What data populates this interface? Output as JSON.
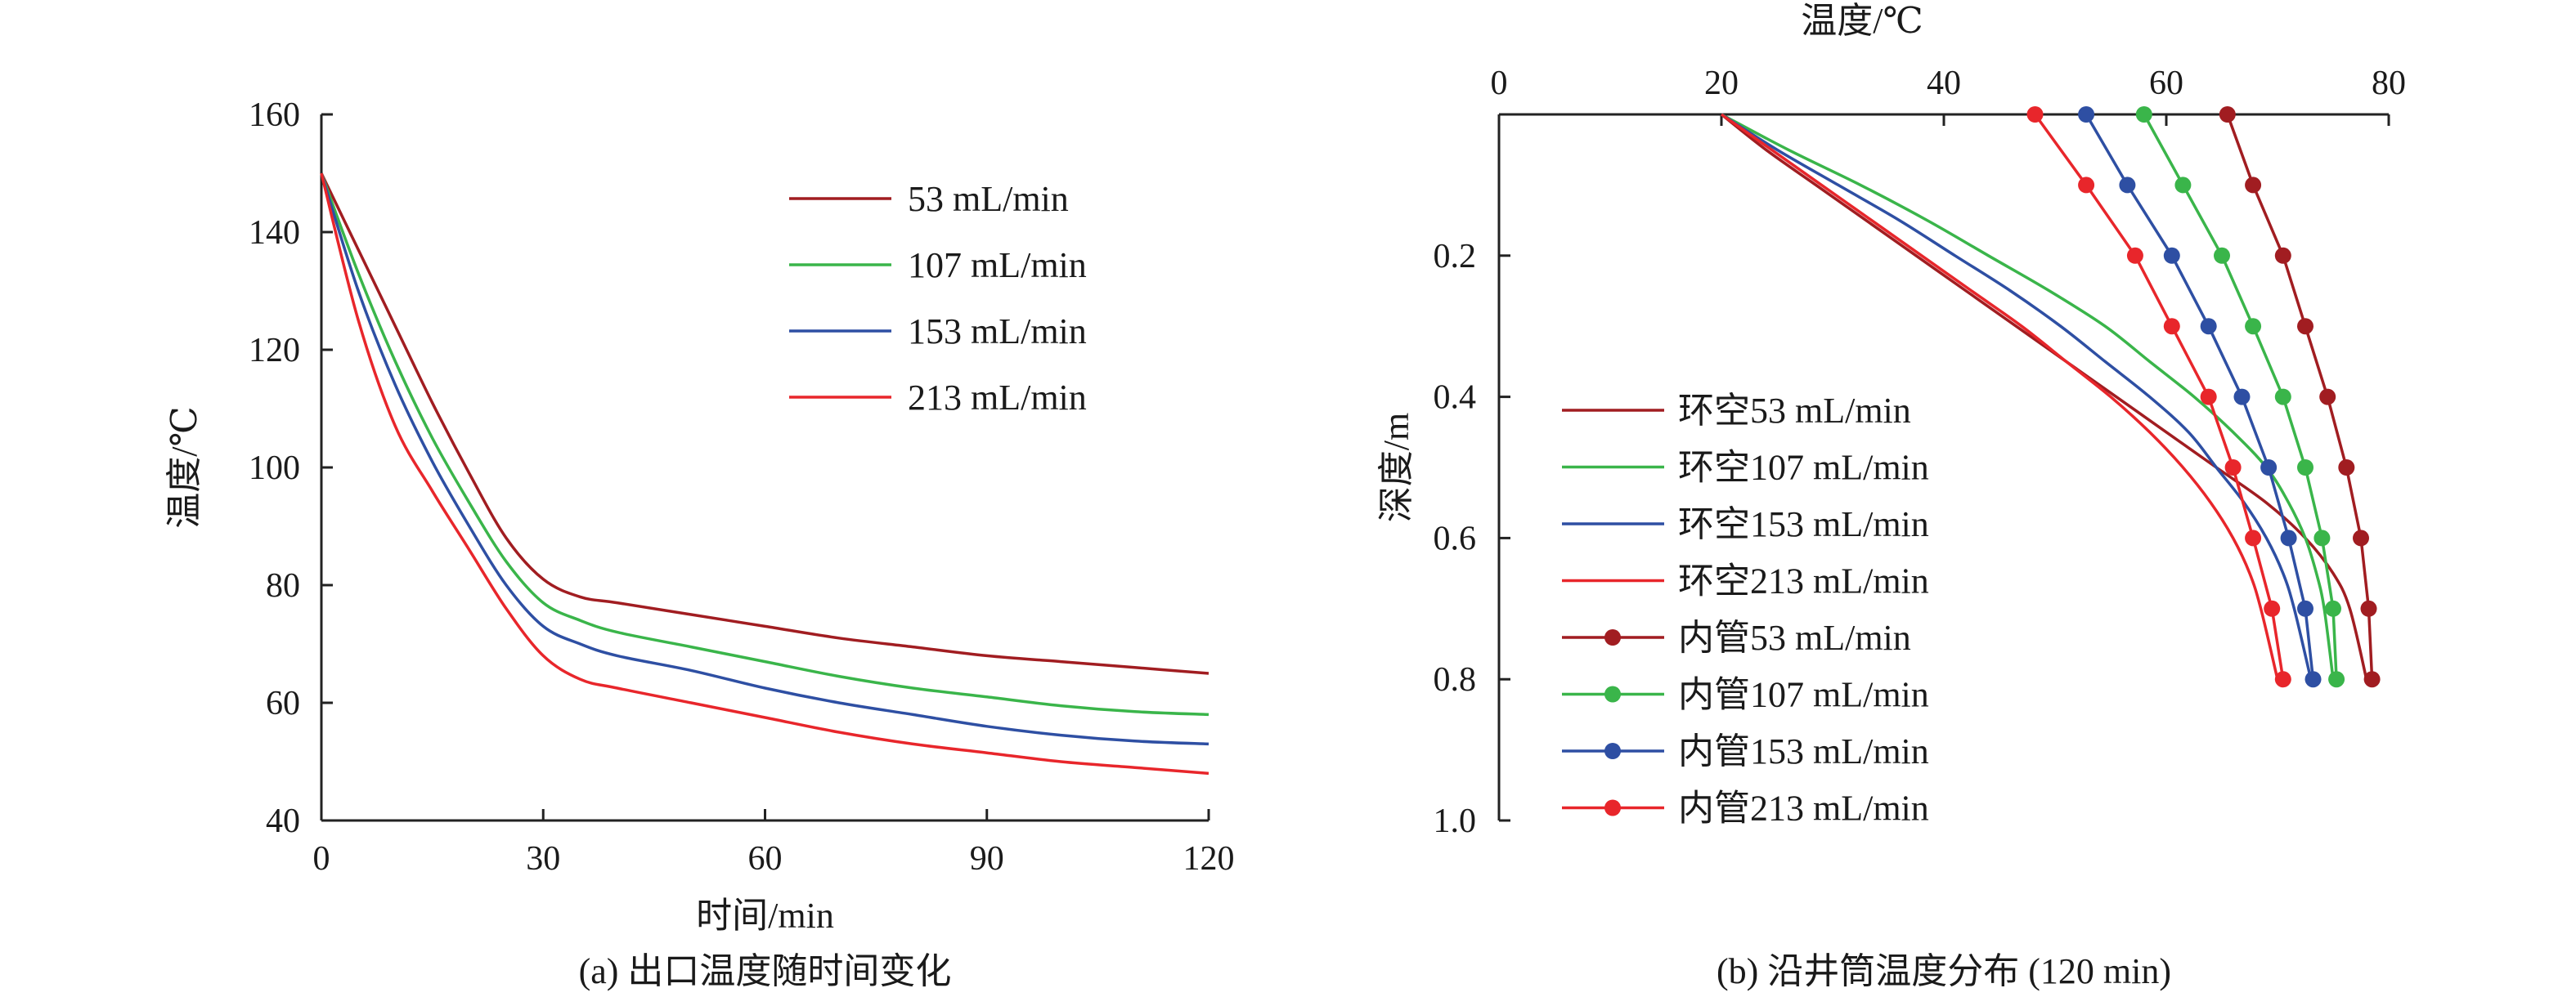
{
  "chart_data": [
    {
      "type": "line",
      "caption": "(a) 出口温度随时间变化",
      "xlabel": "时间/min",
      "ylabel": "温度/℃",
      "xlim": [
        0,
        120
      ],
      "ylim": [
        40,
        160
      ],
      "xticks": [
        "0",
        "30",
        "60",
        "90",
        "120"
      ],
      "yticks": [
        "40",
        "60",
        "80",
        "100",
        "120",
        "140",
        "160"
      ],
      "grid": false,
      "legend_position": "top-right",
      "x": [
        0,
        5,
        10,
        15,
        20,
        25,
        30,
        35,
        40,
        50,
        60,
        70,
        80,
        90,
        100,
        110,
        120
      ],
      "series": [
        {
          "name": "53 mL/min",
          "color": "#a11d21",
          "values": [
            150,
            137,
            124,
            111,
            99,
            88,
            81,
            78,
            77,
            75,
            73,
            71,
            69.5,
            68,
            67,
            66,
            65
          ]
        },
        {
          "name": "107 mL/min",
          "color": "#3ab54a",
          "values": [
            150,
            133,
            118,
            105,
            94,
            84,
            77,
            74,
            72,
            69.5,
            67,
            64.5,
            62.5,
            61,
            59.5,
            58.5,
            58
          ]
        },
        {
          "name": "153 mL/min",
          "color": "#2e4fa3",
          "values": [
            150,
            130,
            114,
            101,
            90,
            80,
            73,
            70,
            68,
            65.5,
            62.5,
            60,
            58,
            56,
            54.5,
            53.5,
            53
          ]
        },
        {
          "name": "213 mL/min",
          "color": "#e8262b",
          "values": [
            150,
            125,
            107,
            96,
            86,
            76,
            68,
            64,
            62.5,
            60,
            57.5,
            55,
            53,
            51.5,
            50,
            49,
            48
          ]
        }
      ]
    },
    {
      "type": "line",
      "caption": "(b) 沿井筒温度分布 (120 min)",
      "xlabel": "温度/℃",
      "ylabel": "深度/m",
      "xlim": [
        0,
        80
      ],
      "ylim": [
        0,
        1.0
      ],
      "y_inverted": true,
      "x_axis_position": "top",
      "xticks": [
        "0",
        "20",
        "40",
        "60",
        "80"
      ],
      "yticks": [
        "0.2",
        "0.4",
        "0.6",
        "0.8",
        "1.0"
      ],
      "grid": false,
      "legend_position": "bottom-left",
      "series": [
        {
          "name": "环空53 mL/min",
          "color": "#a11d21",
          "marker": false,
          "x": [
            20,
            24,
            28.5,
            33,
            37.5,
            42,
            46.5,
            51,
            55.5,
            60,
            64.5,
            69,
            72.5,
            75,
            76.5,
            78
          ],
          "y": [
            0,
            0.05,
            0.1,
            0.15,
            0.2,
            0.25,
            0.3,
            0.35,
            0.4,
            0.45,
            0.5,
            0.55,
            0.6,
            0.65,
            0.7,
            0.8
          ]
        },
        {
          "name": "环空107 mL/min",
          "color": "#3ab54a",
          "marker": false,
          "x": [
            20,
            26,
            32.5,
            38.5,
            44,
            49.5,
            54.5,
            58.5,
            62.5,
            66,
            69,
            71,
            72.5,
            73.5,
            74.2,
            75
          ],
          "y": [
            0,
            0.05,
            0.1,
            0.15,
            0.2,
            0.25,
            0.3,
            0.35,
            0.4,
            0.45,
            0.5,
            0.55,
            0.6,
            0.65,
            0.7,
            0.8
          ]
        },
        {
          "name": "环空153 mL/min",
          "color": "#2e4fa3",
          "marker": false,
          "x": [
            20,
            25,
            30.5,
            36,
            41,
            46,
            50.5,
            54.5,
            58.5,
            62,
            64.5,
            67,
            69,
            70.5,
            71.5,
            73
          ],
          "y": [
            0,
            0.05,
            0.1,
            0.15,
            0.2,
            0.25,
            0.3,
            0.35,
            0.4,
            0.45,
            0.5,
            0.55,
            0.6,
            0.65,
            0.7,
            0.8
          ]
        },
        {
          "name": "环空213 mL/min",
          "color": "#e8262b",
          "marker": false,
          "x": [
            20,
            24.5,
            29,
            33.5,
            38,
            42.5,
            47,
            51,
            55,
            58.5,
            61.5,
            64,
            66,
            67.5,
            68.5,
            70
          ],
          "y": [
            0,
            0.05,
            0.1,
            0.15,
            0.2,
            0.25,
            0.3,
            0.35,
            0.4,
            0.45,
            0.5,
            0.55,
            0.6,
            0.65,
            0.7,
            0.8
          ]
        },
        {
          "name": "内管53 mL/min",
          "color": "#a11d21",
          "marker": true,
          "x": [
            65.5,
            67.8,
            70.5,
            72.5,
            74.5,
            76.2,
            77.5,
            78.2,
            78.5
          ],
          "y": [
            0,
            0.1,
            0.2,
            0.3,
            0.4,
            0.5,
            0.6,
            0.7,
            0.8
          ]
        },
        {
          "name": "内管107 mL/min",
          "color": "#3ab54a",
          "marker": true,
          "x": [
            58,
            61.5,
            65,
            67.8,
            70.5,
            72.5,
            74,
            75,
            75.3
          ],
          "y": [
            0,
            0.1,
            0.2,
            0.3,
            0.4,
            0.5,
            0.6,
            0.7,
            0.8
          ]
        },
        {
          "name": "内管153 mL/min",
          "color": "#2e4fa3",
          "marker": true,
          "x": [
            52.8,
            56.5,
            60.5,
            63.8,
            66.8,
            69.2,
            71,
            72.5,
            73.2
          ],
          "y": [
            0,
            0.1,
            0.2,
            0.3,
            0.4,
            0.5,
            0.6,
            0.7,
            0.8
          ]
        },
        {
          "name": "内管213 mL/min",
          "color": "#e8262b",
          "marker": true,
          "x": [
            48.2,
            52.8,
            57.2,
            60.5,
            63.8,
            66,
            67.8,
            69.5,
            70.5
          ],
          "y": [
            0,
            0.1,
            0.2,
            0.3,
            0.4,
            0.5,
            0.6,
            0.7,
            0.8
          ]
        }
      ]
    }
  ]
}
